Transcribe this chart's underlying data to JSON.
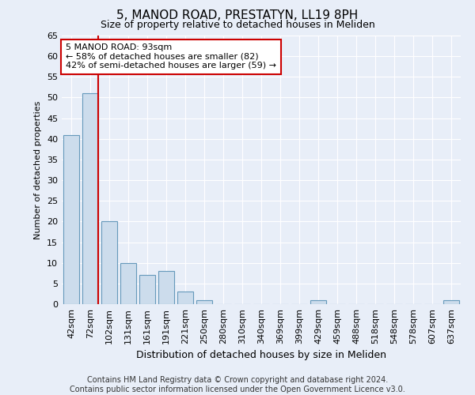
{
  "title": "5, MANOD ROAD, PRESTATYN, LL19 8PH",
  "subtitle": "Size of property relative to detached houses in Meliden",
  "xlabel": "Distribution of detached houses by size in Meliden",
  "ylabel": "Number of detached properties",
  "categories": [
    "42sqm",
    "72sqm",
    "102sqm",
    "131sqm",
    "161sqm",
    "191sqm",
    "221sqm",
    "250sqm",
    "280sqm",
    "310sqm",
    "340sqm",
    "369sqm",
    "399sqm",
    "429sqm",
    "459sqm",
    "488sqm",
    "518sqm",
    "548sqm",
    "578sqm",
    "607sqm",
    "637sqm"
  ],
  "values": [
    41,
    51,
    20,
    10,
    7,
    8,
    3,
    1,
    0,
    0,
    0,
    0,
    0,
    1,
    0,
    0,
    0,
    0,
    0,
    0,
    1
  ],
  "bar_color": "#ccdcec",
  "bar_edge_color": "#6699bb",
  "property_line_color": "#cc0000",
  "ylim": [
    0,
    65
  ],
  "yticks": [
    0,
    5,
    10,
    15,
    20,
    25,
    30,
    35,
    40,
    45,
    50,
    55,
    60,
    65
  ],
  "annotation_text": "5 MANOD ROAD: 93sqm\n← 58% of detached houses are smaller (82)\n42% of semi-detached houses are larger (59) →",
  "annotation_box_facecolor": "#ffffff",
  "annotation_box_edgecolor": "#cc0000",
  "footer_text": "Contains HM Land Registry data © Crown copyright and database right 2024.\nContains public sector information licensed under the Open Government Licence v3.0.",
  "bg_color": "#e8eef8",
  "grid_color": "#ffffff",
  "title_fontsize": 11,
  "subtitle_fontsize": 9,
  "ylabel_fontsize": 8,
  "xlabel_fontsize": 9,
  "tick_fontsize": 8,
  "annot_fontsize": 8,
  "footer_fontsize": 7
}
